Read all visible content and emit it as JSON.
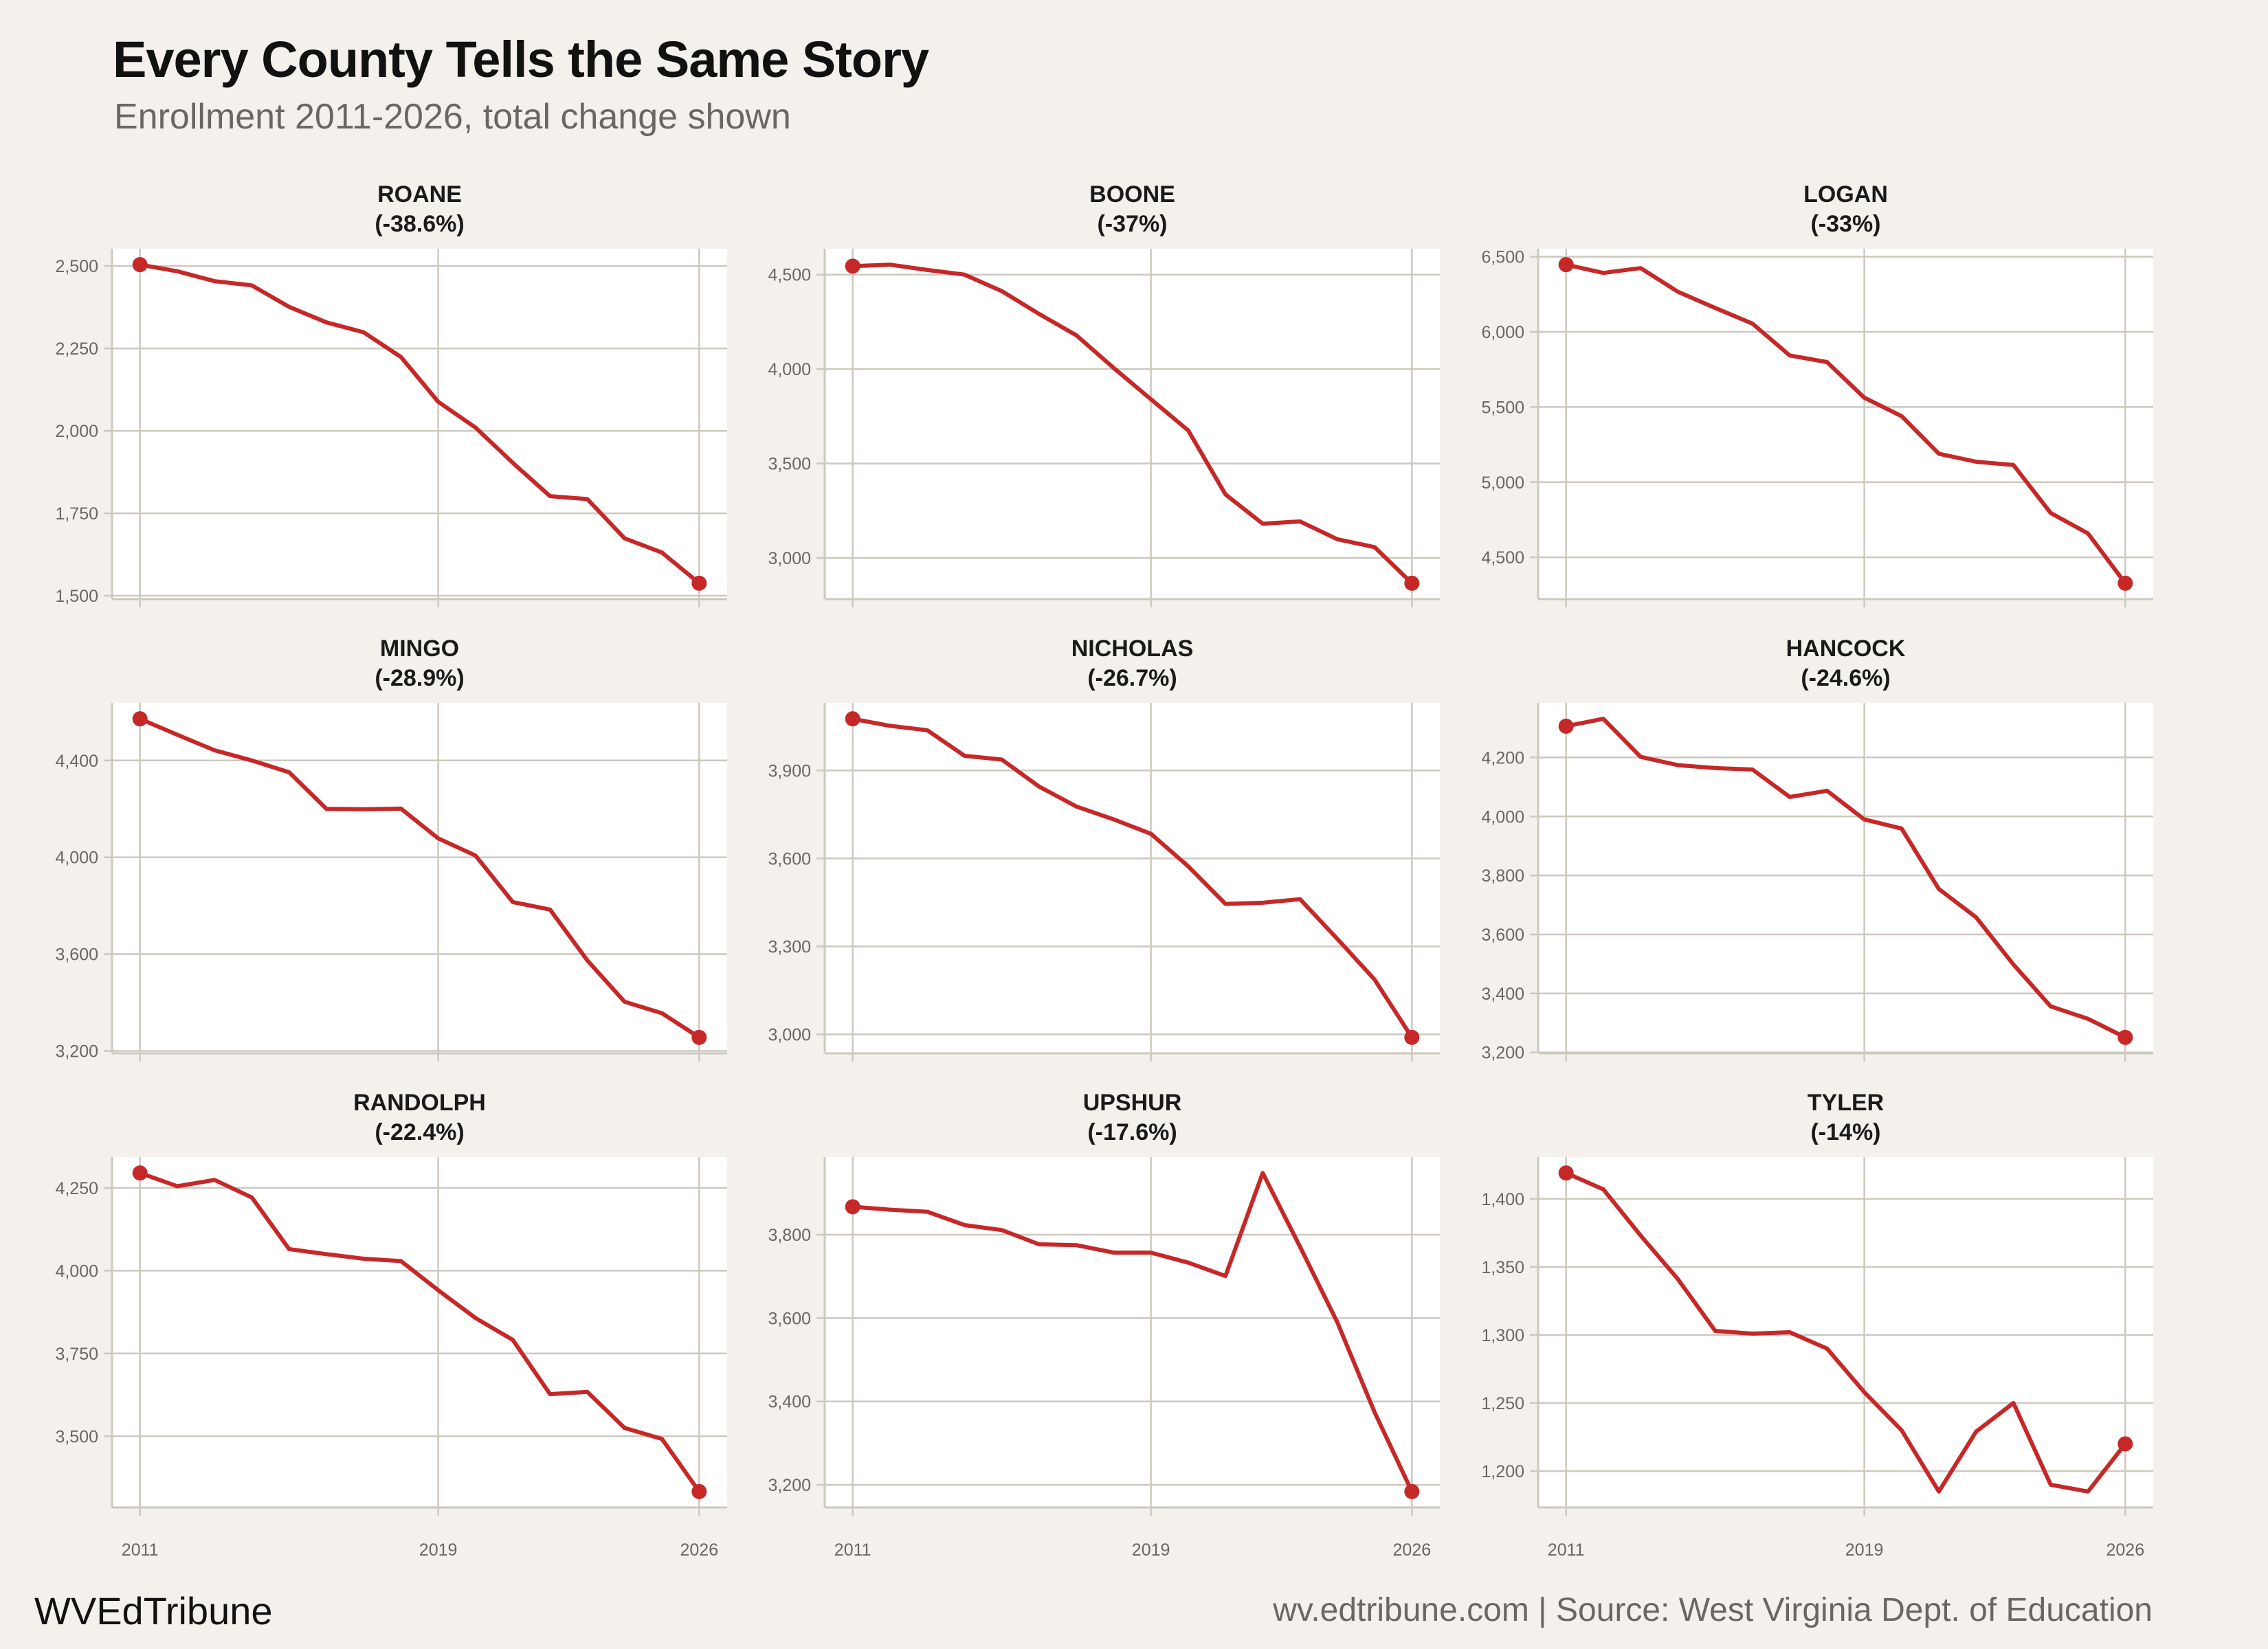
{
  "header": {
    "title": "Every County Tells the Same Story",
    "subtitle": "Enrollment 2011-2026, total change shown"
  },
  "footer": {
    "brand": "WVEdTribune",
    "source": "wv.edtribune.com | Source: West Virginia Dept. of Education"
  },
  "colors": {
    "line": "#c62828",
    "grid": "#cdc8bf",
    "panel": "#ffffff",
    "background": "#f4f1ec"
  },
  "chart_data": {
    "type": "line",
    "layout": "small multiples 3x3",
    "x": [
      2011,
      2012,
      2013,
      2014,
      2015,
      2016,
      2017,
      2018,
      2019,
      2020,
      2021,
      2022,
      2023,
      2024,
      2025,
      2026
    ],
    "x_ticks": [
      "2011",
      "2019",
      "2026"
    ],
    "xlim": [
      2011,
      2026
    ],
    "grid": true,
    "endpoint_markers": true,
    "panels": [
      {
        "name": "ROANE",
        "change": "(-38.6%)",
        "y_ticks": [
          1500,
          1750,
          2000,
          2250,
          2500
        ],
        "y_tick_labels": [
          "1,500",
          "1,750",
          "2,000",
          "2,250",
          "2,500"
        ],
        "values": [
          2504,
          2484,
          2454,
          2441,
          2376,
          2329,
          2299,
          2224,
          2088,
          2010,
          1903,
          1802,
          1793,
          1674,
          1631,
          1538
        ]
      },
      {
        "name": "BOONE",
        "change": "(-37%)",
        "y_ticks": [
          3000,
          3500,
          4000,
          4500
        ],
        "y_tick_labels": [
          "3,000",
          "3,500",
          "4,000",
          "4,500"
        ],
        "values": [
          4545,
          4553,
          4525,
          4500,
          4413,
          4292,
          4179,
          4006,
          3840,
          3675,
          3336,
          3181,
          3193,
          3099,
          3057,
          2866
        ]
      },
      {
        "name": "LOGAN",
        "change": "(-33%)",
        "y_ticks": [
          4500,
          5000,
          5500,
          6000,
          6500
        ],
        "y_tick_labels": [
          "4,500",
          "5,000",
          "5,500",
          "6,000",
          "6,500"
        ],
        "values": [
          6447,
          6392,
          6424,
          6267,
          6159,
          6055,
          5843,
          5799,
          5562,
          5439,
          5189,
          5136,
          5114,
          4795,
          4659,
          4328
        ]
      },
      {
        "name": "MINGO",
        "change": "(-28.9%)",
        "y_ticks": [
          3200,
          3600,
          4000,
          4400
        ],
        "y_tick_labels": [
          "3,200",
          "3,600",
          "4,000",
          "4,400"
        ],
        "values": [
          4572,
          4506,
          4442,
          4400,
          4351,
          4200,
          4198,
          4201,
          4078,
          4007,
          3815,
          3784,
          3574,
          3403,
          3356,
          3256
        ]
      },
      {
        "name": "NICHOLAS",
        "change": "(-26.7%)",
        "y_ticks": [
          3000,
          3300,
          3600,
          3900
        ],
        "y_tick_labels": [
          "3,000",
          "3,300",
          "3,600",
          "3,900"
        ],
        "values": [
          4076,
          4052,
          4037,
          3950,
          3937,
          3845,
          3777,
          3733,
          3684,
          3573,
          3445,
          3449,
          3461,
          3326,
          3187,
          2990
        ]
      },
      {
        "name": "HANCOCK",
        "change": "(-24.6%)",
        "y_ticks": [
          3200,
          3400,
          3600,
          3800,
          4000,
          4200
        ],
        "y_tick_labels": [
          "3,200",
          "3,400",
          "3,600",
          "3,800",
          "4,000",
          "4,200"
        ],
        "values": [
          4306,
          4331,
          4202,
          4174,
          4164,
          4159,
          4066,
          4087,
          3990,
          3959,
          3754,
          3658,
          3498,
          3356,
          3314,
          3251
        ]
      },
      {
        "name": "RANDOLPH",
        "change": "(-22.4%)",
        "y_ticks": [
          3500,
          3750,
          4000,
          4250
        ],
        "y_tick_labels": [
          "3,500",
          "3,750",
          "4,000",
          "4,250"
        ],
        "values": [
          4295,
          4255,
          4274,
          4221,
          4065,
          4050,
          4036,
          4029,
          3941,
          3857,
          3791,
          3627,
          3634,
          3525,
          3492,
          3333
        ]
      },
      {
        "name": "UPSHUR",
        "change": "(-17.6%)",
        "y_ticks": [
          3200,
          3400,
          3600,
          3800
        ],
        "y_tick_labels": [
          "3,200",
          "3,400",
          "3,600",
          "3,800"
        ],
        "values": [
          3867,
          3860,
          3855,
          3823,
          3811,
          3777,
          3775,
          3757,
          3757,
          3733,
          3701,
          3948,
          3771,
          3590,
          3374,
          3184
        ]
      },
      {
        "name": "TYLER",
        "change": "(-14%)",
        "y_ticks": [
          1200,
          1250,
          1300,
          1350,
          1400
        ],
        "y_tick_labels": [
          "1,200",
          "1,250",
          "1,300",
          "1,350",
          "1,400"
        ],
        "values": [
          1419,
          1407,
          1373,
          1341,
          1303,
          1301,
          1302,
          1290,
          1258,
          1230,
          1185,
          1229,
          1250,
          1190,
          1185,
          1220
        ]
      }
    ]
  }
}
